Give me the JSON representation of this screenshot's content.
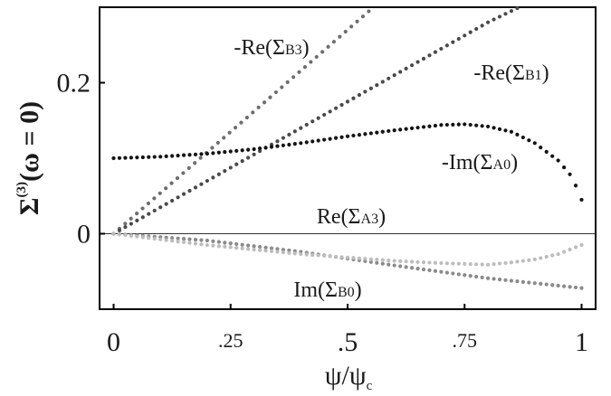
{
  "chart_data": {
    "type": "scatter",
    "xlabel_main": "ψ/ψ",
    "xlabel_sub": "c",
    "ylabel_main": "Σ",
    "ylabel_sup": "(3)",
    "ylabel_tail": "(ω = 0)",
    "xlim": [
      -0.03,
      1.03
    ],
    "ylim": [
      -0.1,
      0.3
    ],
    "x_ticks": [
      {
        "value": 0,
        "label": "0",
        "size": "big"
      },
      {
        "value": 0.25,
        "label": ".25",
        "size": "small"
      },
      {
        "value": 0.5,
        "label": ".5",
        "size": "big"
      },
      {
        "value": 0.75,
        "label": ".75",
        "size": "small"
      },
      {
        "value": 1,
        "label": "1",
        "size": "big"
      }
    ],
    "y_ticks": [
      {
        "value": 0,
        "label": "0"
      },
      {
        "value": 0.2,
        "label": "0.2"
      }
    ],
    "zero_line": true,
    "grid": false,
    "series": [
      {
        "name": "-Re(ΣB3)",
        "label_parts": [
          "-Re(Σ",
          "B3",
          ")"
        ],
        "color": "#6e6e6e",
        "x": [
          0,
          0.1,
          0.2,
          0.3,
          0.4,
          0.5,
          0.57
        ],
        "y": [
          0,
          0.054,
          0.108,
          0.162,
          0.216,
          0.27,
          0.308
        ]
      },
      {
        "name": "-Re(ΣB1)",
        "label_parts": [
          "-Re(Σ",
          "B1",
          ")"
        ],
        "color": "#4a4a4a",
        "x": [
          0,
          0.1,
          0.2,
          0.3,
          0.4,
          0.5,
          0.6,
          0.7,
          0.8,
          0.9
        ],
        "y": [
          0,
          0.035,
          0.07,
          0.105,
          0.14,
          0.175,
          0.21,
          0.245,
          0.28,
          0.31
        ]
      },
      {
        "name": "-Im(ΣA0)",
        "label_parts": [
          "-Im(Σ",
          "A0",
          ")"
        ],
        "color": "#141414",
        "x": [
          0,
          0.1,
          0.2,
          0.3,
          0.4,
          0.5,
          0.6,
          0.7,
          0.75,
          0.8,
          0.85,
          0.9,
          0.95,
          0.98,
          1.0
        ],
        "y": [
          0.1,
          0.102,
          0.106,
          0.112,
          0.12,
          0.129,
          0.137,
          0.144,
          0.145,
          0.142,
          0.135,
          0.12,
          0.097,
          0.075,
          0.045
        ]
      },
      {
        "name": "Re(ΣA3)",
        "label_parts": [
          "Re(Σ",
          "A3",
          ")"
        ],
        "color": "#8a8a8a",
        "x": [
          0,
          0.2,
          0.4,
          0.6,
          0.8,
          1.0
        ],
        "y": [
          0,
          -0.009,
          -0.024,
          -0.042,
          -0.059,
          -0.072
        ]
      },
      {
        "name": "Im(ΣB0)",
        "label_parts": [
          "Im(Σ",
          "B0",
          ")"
        ],
        "color": "#bdbdbd",
        "x": [
          0,
          0.2,
          0.4,
          0.6,
          0.7,
          0.8,
          0.85,
          0.9,
          0.95,
          1.0
        ],
        "y": [
          0,
          -0.015,
          -0.027,
          -0.036,
          -0.039,
          -0.041,
          -0.038,
          -0.034,
          -0.027,
          -0.015
        ]
      }
    ]
  }
}
